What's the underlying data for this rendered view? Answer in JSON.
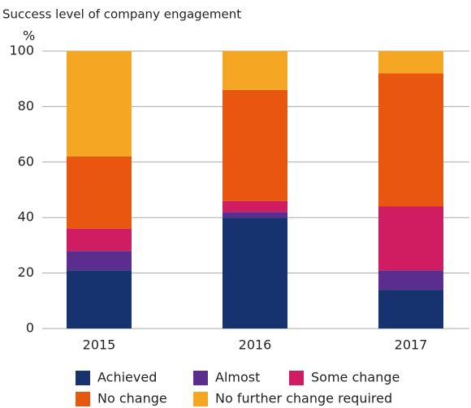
{
  "chart_data": {
    "type": "stacked_bar",
    "title": "Success level of company engagement",
    "y_label": "%",
    "categories": [
      "2015",
      "2016",
      "2017"
    ],
    "series": [
      {
        "name": "Achieved",
        "color": "#17336f",
        "values": [
          21,
          40,
          14
        ]
      },
      {
        "name": "Almost",
        "color": "#5b2d8e",
        "values": [
          7,
          2,
          7
        ]
      },
      {
        "name": "Some change",
        "color": "#d01c60",
        "values": [
          8,
          4,
          23
        ]
      },
      {
        "name": "No change",
        "color": "#e8560f",
        "values": [
          26,
          40,
          48
        ]
      },
      {
        "name": "No further change required",
        "color": "#f5a623",
        "values": [
          38,
          14,
          8
        ]
      }
    ],
    "ylim": [
      0,
      100
    ],
    "yticks": [
      0,
      20,
      40,
      60,
      80,
      100
    ],
    "grid": true
  }
}
